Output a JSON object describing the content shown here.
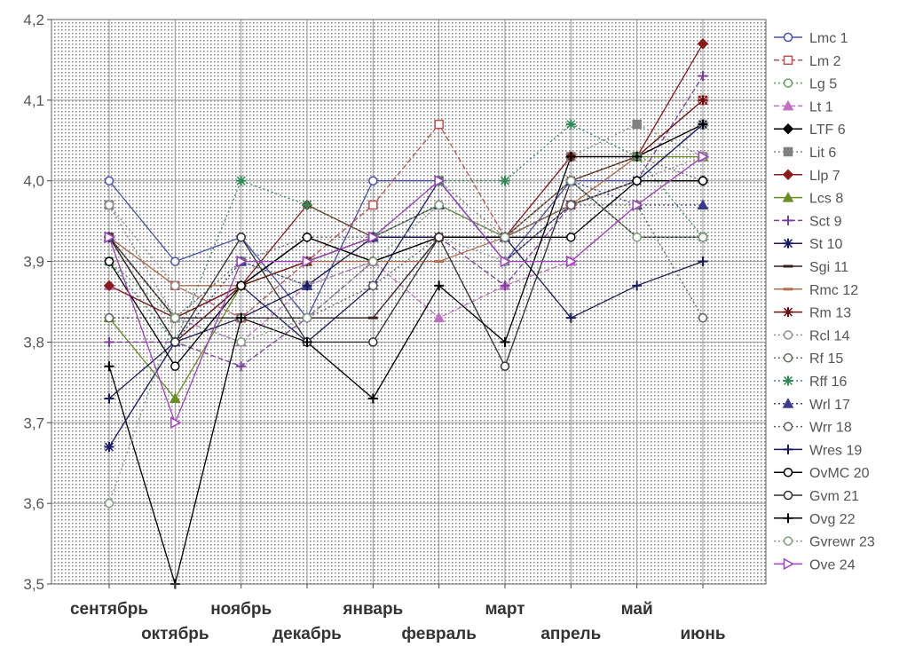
{
  "chart_data": {
    "type": "line",
    "categories": [
      "сентябрь",
      "октябрь",
      "ноябрь",
      "декабрь",
      "январь",
      "февраль",
      "март",
      "апрель",
      "май",
      "июнь"
    ],
    "ylim": [
      3.5,
      4.2
    ],
    "yticks": [
      "3,5",
      "3,6",
      "3,7",
      "3,8",
      "3,9",
      "4,0",
      "4,1",
      "4,2"
    ],
    "grid": true,
    "legend_position": "right",
    "series": [
      {
        "name": "Lmc 1",
        "color": "#4a4fb0",
        "marker": "o",
        "dash": "solid",
        "values": [
          4.0,
          3.9,
          3.93,
          3.83,
          4.0,
          4.0,
          3.9,
          4.0,
          4.0,
          4.07
        ]
      },
      {
        "name": "Lm 2",
        "color": "#c05050",
        "marker": "s",
        "dash": "dash",
        "values": [
          3.93,
          3.87,
          3.83,
          3.9,
          3.97,
          4.07,
          3.93,
          3.97,
          4.03,
          4.1
        ]
      },
      {
        "name": "Lg 5",
        "color": "#60a060",
        "marker": "o",
        "dash": "dot",
        "values": [
          3.9,
          3.83,
          3.87,
          3.9,
          3.93,
          3.97,
          3.93,
          4.0,
          4.03,
          4.07
        ]
      },
      {
        "name": "Lt 1",
        "color": "#c070c0",
        "marker": "t",
        "dash": "dash",
        "values": [
          3.87,
          3.83,
          3.8,
          3.87,
          3.9,
          3.83,
          3.87,
          3.9,
          3.97,
          4.03
        ]
      },
      {
        "name": "LTF 6",
        "color": "#000000",
        "marker": "d",
        "dash": "solid",
        "values": [
          3.93,
          3.83,
          3.87,
          3.93,
          3.9,
          3.93,
          3.93,
          3.97,
          4.0,
          4.0
        ]
      },
      {
        "name": "Lit 6",
        "color": "#808080",
        "marker": "s",
        "dash": "dot",
        "values": [
          3.97,
          3.83,
          3.9,
          3.87,
          3.93,
          4.0,
          3.93,
          4.03,
          4.07,
          4.03
        ]
      },
      {
        "name": "Llp 7",
        "color": "#8b1a1a",
        "marker": "d",
        "dash": "solid",
        "values": [
          3.87,
          3.83,
          3.87,
          3.97,
          3.93,
          3.93,
          3.93,
          4.03,
          4.03,
          4.17
        ]
      },
      {
        "name": "Lcs 8",
        "color": "#6b8e23",
        "marker": "t",
        "dash": "solid",
        "values": [
          3.83,
          3.73,
          3.87,
          3.9,
          3.93,
          3.97,
          3.93,
          4.0,
          4.03,
          4.03
        ]
      },
      {
        "name": "Sct 9",
        "color": "#7b3fa0",
        "marker": "+",
        "dash": "dash",
        "values": [
          3.8,
          3.8,
          3.77,
          3.83,
          3.9,
          3.93,
          3.87,
          3.97,
          4.0,
          4.13
        ]
      },
      {
        "name": "St 10",
        "color": "#1a1a6b",
        "marker": "x",
        "dash": "solid",
        "values": [
          3.67,
          3.8,
          3.87,
          3.8,
          3.87,
          4.0,
          3.9,
          3.97,
          4.0,
          4.07
        ]
      },
      {
        "name": "Sgi 11",
        "color": "#3a2020",
        "marker": "-",
        "dash": "solid",
        "values": [
          3.93,
          3.83,
          3.83,
          3.83,
          3.83,
          3.93,
          3.93,
          3.97,
          4.0,
          4.0
        ]
      },
      {
        "name": "Rmc 12",
        "color": "#b07050",
        "marker": "-",
        "dash": "solid",
        "values": [
          3.93,
          3.87,
          3.87,
          3.9,
          3.9,
          3.9,
          3.93,
          3.97,
          4.03,
          4.07
        ]
      },
      {
        "name": "Rm 13",
        "color": "#6b1010",
        "marker": "x",
        "dash": "solid",
        "values": [
          3.93,
          3.8,
          3.87,
          3.9,
          3.93,
          3.93,
          3.93,
          4.0,
          4.03,
          4.1
        ]
      },
      {
        "name": "Rcl 14",
        "color": "#909090",
        "marker": "o",
        "dash": "dot",
        "values": [
          3.97,
          3.87,
          3.83,
          3.87,
          3.9,
          3.93,
          3.9,
          3.97,
          4.0,
          4.03
        ]
      },
      {
        "name": "Rf 15",
        "color": "#607060",
        "marker": "o",
        "dash": "dot",
        "values": [
          3.93,
          3.83,
          3.9,
          3.93,
          3.93,
          3.97,
          3.93,
          4.0,
          4.03,
          4.0
        ]
      },
      {
        "name": "Rff 16",
        "color": "#2e8b57",
        "marker": "*",
        "dash": "dot",
        "values": [
          3.9,
          3.8,
          4.0,
          3.97,
          3.93,
          4.0,
          4.0,
          4.07,
          4.03,
          3.93
        ]
      },
      {
        "name": "Wrl 17",
        "color": "#3a3a90",
        "marker": "t",
        "dash": "dot",
        "values": [
          3.93,
          3.8,
          3.9,
          3.87,
          3.93,
          3.97,
          3.93,
          4.0,
          3.97,
          3.97
        ]
      },
      {
        "name": "Wrr 18",
        "color": "#606060",
        "marker": "o",
        "dash": "dot",
        "values": [
          3.83,
          3.83,
          3.83,
          3.83,
          3.87,
          3.93,
          3.93,
          3.97,
          3.97,
          3.83
        ]
      },
      {
        "name": "Wres 19",
        "color": "#1a1a5a",
        "marker": "+",
        "dash": "solid",
        "values": [
          3.73,
          3.8,
          3.83,
          3.87,
          3.93,
          3.93,
          3.93,
          3.83,
          3.87,
          3.9
        ]
      },
      {
        "name": "OvMC 20",
        "color": "#000000",
        "marker": "o",
        "dash": "solid",
        "values": [
          3.9,
          3.77,
          3.87,
          3.93,
          3.9,
          3.93,
          3.93,
          3.93,
          4.0,
          4.0
        ]
      },
      {
        "name": "Gvm 21",
        "color": "#303030",
        "marker": "o",
        "dash": "solid",
        "values": [
          3.93,
          3.8,
          3.93,
          3.8,
          3.8,
          3.93,
          3.77,
          4.0,
          3.93,
          3.93
        ]
      },
      {
        "name": "Ovg 22",
        "color": "#000000",
        "marker": "+",
        "dash": "solid",
        "values": [
          3.77,
          3.5,
          3.83,
          3.8,
          3.73,
          3.87,
          3.8,
          4.03,
          4.03,
          4.07
        ]
      },
      {
        "name": "Gvrewr 23",
        "color": "#80a080",
        "marker": "o",
        "dash": "dot",
        "values": [
          3.6,
          3.83,
          3.8,
          3.83,
          3.9,
          3.97,
          3.93,
          4.0,
          3.93,
          3.93
        ]
      },
      {
        "name": "Ove 24",
        "color": "#a040c0",
        "marker": ">",
        "dash": "solid",
        "values": [
          3.93,
          3.7,
          3.9,
          3.9,
          3.93,
          4.0,
          3.9,
          3.9,
          3.97,
          4.03
        ]
      }
    ]
  }
}
